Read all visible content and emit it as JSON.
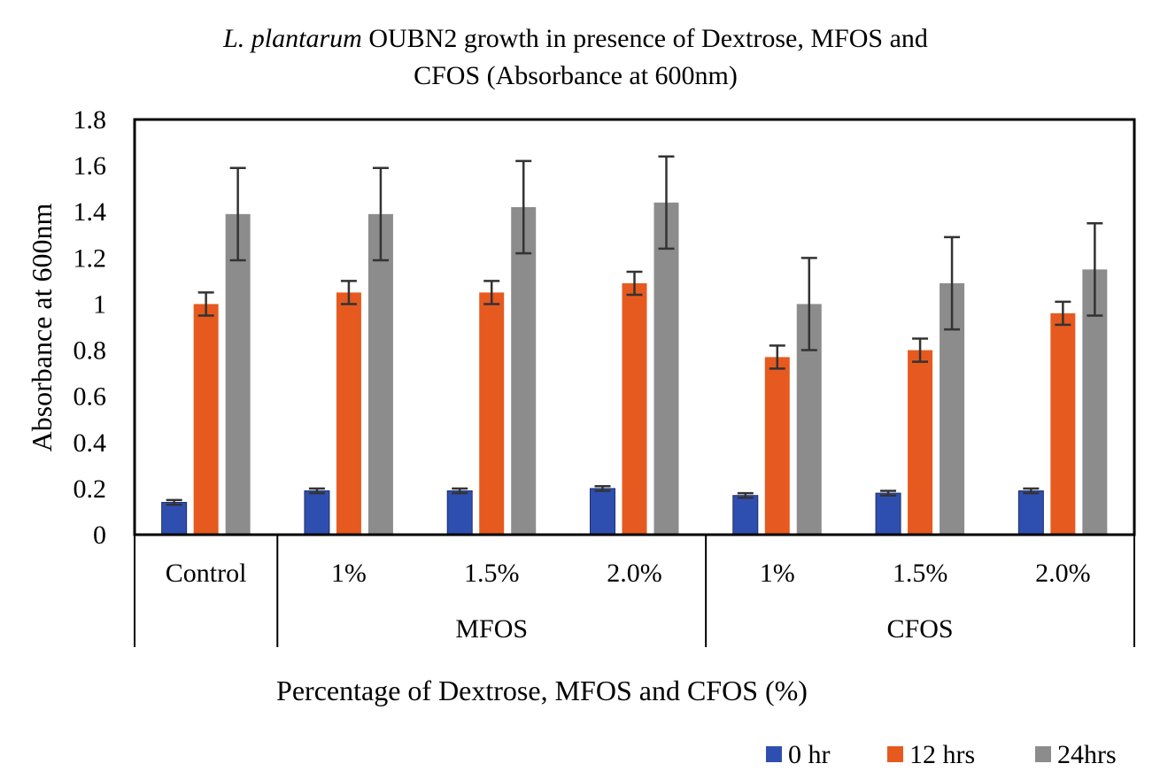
{
  "chart_data": {
    "type": "bar",
    "title_italic": "L. plantarum",
    "title_rest_line1": " OUBN2 growth in presence of Dextrose, MFOS and",
    "title_line2": "CFOS (Absorbance at 600nm)",
    "xlabel": "Percentage of Dextrose, MFOS and CFOS (%)",
    "ylabel": "Absorbance at 600nm",
    "ylim": [
      0,
      1.8
    ],
    "yticks": [
      "0",
      "0.2",
      "0.4",
      "0.6",
      "0.8",
      "1",
      "1.2",
      "1.4",
      "1.6",
      "1.8"
    ],
    "categories": [
      "Control",
      "1%",
      "1.5%",
      "2.0%",
      "1%",
      "1.5%",
      "2.0%"
    ],
    "groups": [
      {
        "label": "",
        "start": 0,
        "end": 0
      },
      {
        "label": "MFOS",
        "start": 1,
        "end": 3
      },
      {
        "label": "CFOS",
        "start": 4,
        "end": 6
      }
    ],
    "series": [
      {
        "name": "0 hr",
        "color": "#2f4fb0",
        "values": [
          0.14,
          0.19,
          0.19,
          0.2,
          0.17,
          0.18,
          0.19
        ],
        "errors": [
          0.01,
          0.01,
          0.01,
          0.01,
          0.01,
          0.01,
          0.01
        ]
      },
      {
        "name": "12 hrs",
        "color": "#e65a1f",
        "values": [
          1.0,
          1.05,
          1.05,
          1.09,
          0.77,
          0.8,
          0.96
        ],
        "errors": [
          0.05,
          0.05,
          0.05,
          0.05,
          0.05,
          0.05,
          0.05
        ]
      },
      {
        "name": "24hrs",
        "color": "#8c8c8c",
        "values": [
          1.39,
          1.39,
          1.42,
          1.44,
          1.0,
          1.09,
          1.15
        ],
        "errors": [
          0.2,
          0.2,
          0.2,
          0.2,
          0.2,
          0.2,
          0.2
        ]
      }
    ],
    "legend_position": "bottom-right",
    "grid": false
  }
}
